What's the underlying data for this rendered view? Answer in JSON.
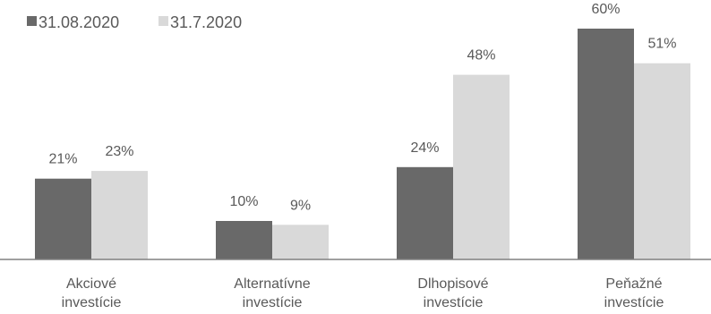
{
  "chart_data": {
    "type": "bar",
    "categories": [
      [
        "Akciové",
        "investície"
      ],
      [
        "Alternatívne",
        "investície"
      ],
      [
        "Dlhopisové",
        "investície"
      ],
      [
        "Peňažné",
        "investície"
      ]
    ],
    "series": [
      {
        "name": "31.08.2020",
        "color": "#696969",
        "values": [
          21,
          10,
          24,
          60
        ],
        "labels": [
          "21%",
          "10%",
          "24%",
          "60%"
        ]
      },
      {
        "name": "31.7.2020",
        "color": "#d9d9d9",
        "values": [
          23,
          9,
          48,
          51
        ],
        "labels": [
          "23%",
          "9%",
          "48%",
          "51%"
        ]
      }
    ],
    "ylim": [
      0,
      62
    ],
    "grid": false,
    "legend": "top-left"
  }
}
